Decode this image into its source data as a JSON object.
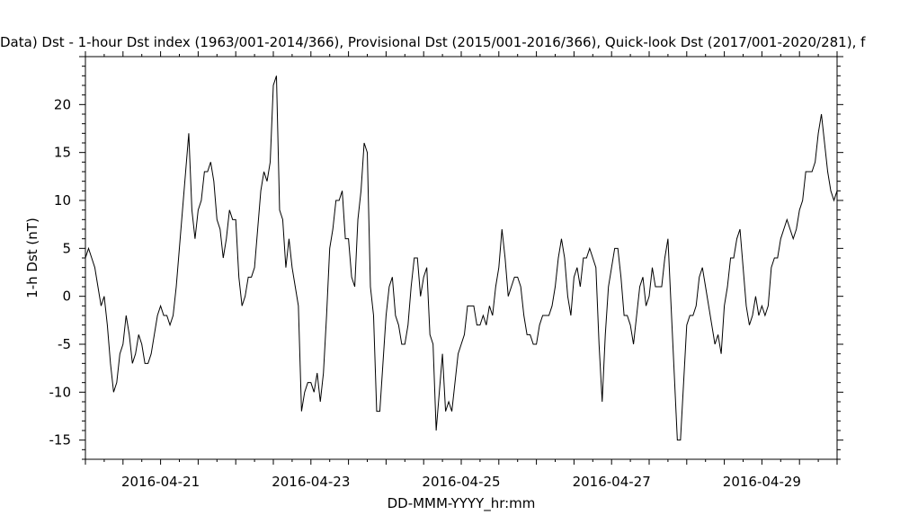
{
  "chart_data": {
    "type": "line",
    "title": "Data)  Dst - 1-hour Dst index (1963/001-2014/366), Provisional Dst (2015/001-2016/366), Quick-look Dst (2017/001-2020/281), f",
    "xlabel": "DD-MMM-YYYY_hr:mm",
    "ylabel": "1-h Dst (nT)",
    "x_start": "2016-04-20 00:00",
    "x_end": "2016-04-30 00:00",
    "x_tick_labels": [
      "2016-04-21",
      "2016-04-23",
      "2016-04-25",
      "2016-04-27",
      "2016-04-29"
    ],
    "ylim": [
      -17,
      25
    ],
    "y_ticks": [
      20,
      15,
      10,
      5,
      0,
      -5,
      -10,
      -15
    ],
    "grid": false,
    "line_color": "#000000",
    "series": [
      {
        "values": [
          4,
          5,
          4,
          3,
          1,
          -1,
          0,
          -3,
          -7,
          -10,
          -9,
          -6,
          -5,
          -2,
          -4,
          -7,
          -6,
          -4,
          -5,
          -7,
          -7,
          -6,
          -4,
          -2,
          -1,
          -2,
          -2,
          -3,
          -2,
          1,
          5,
          9,
          13,
          17,
          9,
          6,
          9,
          10,
          13,
          13,
          14,
          12,
          8,
          7,
          4,
          6,
          9,
          8,
          8,
          2,
          -1,
          0,
          2,
          2,
          3,
          7,
          11,
          13,
          12,
          14,
          22,
          23,
          9,
          8,
          3,
          6,
          3,
          1,
          -1,
          -12,
          -10,
          -9,
          -9,
          -10,
          -8,
          -11,
          -8,
          -2,
          5,
          7,
          10,
          10,
          11,
          6,
          6,
          2,
          1,
          8,
          11,
          16,
          15,
          1,
          -2,
          -12,
          -12,
          -7,
          -2,
          1,
          2,
          -2,
          -3,
          -5,
          -5,
          -3,
          1,
          4,
          4,
          0,
          2,
          3,
          -4,
          -5,
          -14,
          -10,
          -6,
          -12,
          -11,
          -12,
          -9,
          -6,
          -5,
          -4,
          -1,
          -1,
          -1,
          -3,
          -3,
          -2,
          -3,
          -1,
          -2,
          1,
          3,
          7,
          4,
          0,
          1,
          2,
          2,
          1,
          -2,
          -4,
          -4,
          -5,
          -5,
          -3,
          -2,
          -2,
          -2,
          -1,
          1,
          4,
          6,
          4,
          0,
          -2,
          2,
          3,
          1,
          4,
          4,
          5,
          4,
          3,
          -5,
          -11,
          -4,
          1,
          3,
          5,
          5,
          2,
          -2,
          -2,
          -3,
          -5,
          -2,
          1,
          2,
          -1,
          0,
          3,
          1,
          1,
          1,
          4,
          6,
          -1,
          -8,
          -15,
          -15,
          -9,
          -3,
          -2,
          -2,
          -1,
          2,
          3,
          1,
          -1,
          -3,
          -5,
          -4,
          -6,
          -1,
          1,
          4,
          4,
          6,
          7,
          3,
          -1,
          -3,
          -2,
          0,
          -2,
          -1,
          -2,
          -1,
          3,
          4,
          4,
          6,
          7,
          8,
          7,
          6,
          7,
          9,
          10,
          13,
          13,
          13,
          14,
          17,
          19,
          16,
          13,
          11,
          10,
          11
        ]
      }
    ]
  }
}
